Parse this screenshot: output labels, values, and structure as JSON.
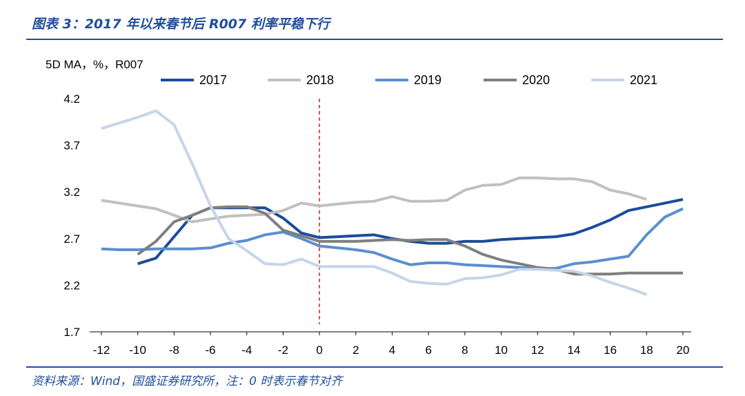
{
  "title": "图表 3：2017 年以来春节后 R007 利率平稳下行",
  "source": "资料来源：Wind，国盛证券研究所，注：0 时表示春节对齐",
  "colors": {
    "2017": "#1b4c9c",
    "2018": "#c0c0c0",
    "2019": "#5a8fd0",
    "2020": "#7f7f7f",
    "2021": "#c5d5ea",
    "marker": "#e8262a",
    "rule": "#1f4e9a"
  },
  "chart_data": {
    "type": "line",
    "ylabel": "5D MA，%，R007",
    "xlim": [
      -12,
      20
    ],
    "ylim": [
      1.7,
      4.2
    ],
    "x_ticks": [
      -12,
      -10,
      -8,
      -6,
      -4,
      -2,
      0,
      2,
      4,
      6,
      8,
      10,
      12,
      14,
      16,
      18,
      20
    ],
    "x_tick_labels": [
      "-12",
      "-10",
      "-8",
      "-6",
      "-4",
      "-2",
      "0",
      "2",
      "4",
      "6",
      "8",
      "10",
      "12",
      "14",
      "16",
      "18",
      "20"
    ],
    "y_ticks": [
      1.7,
      2.2,
      2.7,
      3.2,
      3.7,
      4.2
    ],
    "y_tick_labels": [
      "1.7",
      "2.2",
      "2.7",
      "3.2",
      "3.7",
      "4.2"
    ],
    "vline_x": 0,
    "legend_position": "top",
    "series": [
      {
        "name": "2017",
        "x": [
          -10,
          -9,
          -8,
          -7,
          -6,
          -5,
          -4,
          -3,
          -2,
          -1,
          0,
          1,
          2,
          3,
          4,
          5,
          6,
          7,
          8,
          9,
          10,
          11,
          12,
          13,
          14,
          15,
          16,
          17,
          18,
          19,
          20
        ],
        "y": [
          2.43,
          2.49,
          2.72,
          2.95,
          3.03,
          3.03,
          3.03,
          3.03,
          2.92,
          2.76,
          2.71,
          2.72,
          2.73,
          2.74,
          2.7,
          2.67,
          2.65,
          2.65,
          2.67,
          2.67,
          2.69,
          2.7,
          2.71,
          2.72,
          2.75,
          2.82,
          2.9,
          3.0,
          3.04,
          3.08,
          3.12
        ]
      },
      {
        "name": "2018",
        "x": [
          -12,
          -11,
          -10,
          -9,
          -8,
          -7,
          -6,
          -5,
          -4,
          -3,
          -2,
          -1,
          0,
          1,
          2,
          3,
          4,
          5,
          6,
          7,
          8,
          9,
          10,
          11,
          12,
          13,
          14,
          15,
          16,
          17,
          18
        ],
        "y": [
          3.11,
          3.08,
          3.05,
          3.02,
          2.95,
          2.88,
          2.91,
          2.94,
          2.95,
          2.96,
          3.0,
          3.08,
          3.05,
          3.07,
          3.09,
          3.1,
          3.15,
          3.1,
          3.1,
          3.11,
          3.22,
          3.27,
          3.28,
          3.35,
          3.35,
          3.34,
          3.34,
          3.31,
          3.22,
          3.18,
          3.12
        ]
      },
      {
        "name": "2019",
        "x": [
          -12,
          -11,
          -10,
          -9,
          -8,
          -7,
          -6,
          -5,
          -4,
          -3,
          -2,
          -1,
          0,
          1,
          2,
          3,
          4,
          5,
          6,
          7,
          8,
          9,
          10,
          11,
          12,
          13,
          14,
          15,
          16,
          17,
          18,
          19,
          20
        ],
        "y": [
          2.59,
          2.58,
          2.58,
          2.59,
          2.59,
          2.59,
          2.6,
          2.65,
          2.68,
          2.74,
          2.77,
          2.7,
          2.62,
          2.6,
          2.58,
          2.55,
          2.48,
          2.42,
          2.44,
          2.44,
          2.42,
          2.41,
          2.4,
          2.39,
          2.38,
          2.38,
          2.43,
          2.45,
          2.48,
          2.51,
          2.74,
          2.93,
          3.02
        ]
      },
      {
        "name": "2020",
        "x": [
          -10,
          -9,
          -8,
          -7,
          -6,
          -5,
          -4,
          -3,
          -2,
          -1,
          0,
          1,
          2,
          3,
          4,
          5,
          6,
          7,
          8,
          9,
          10,
          11,
          12,
          13,
          14,
          15,
          16,
          17,
          18,
          19,
          20
        ],
        "y": [
          2.53,
          2.67,
          2.88,
          2.95,
          3.03,
          3.04,
          3.04,
          2.97,
          2.79,
          2.73,
          2.67,
          2.67,
          2.67,
          2.68,
          2.69,
          2.68,
          2.69,
          2.69,
          2.62,
          2.53,
          2.47,
          2.43,
          2.39,
          2.37,
          2.32,
          2.32,
          2.32,
          2.33,
          2.33,
          2.33,
          2.33
        ]
      },
      {
        "name": "2021",
        "x": [
          -12,
          -11,
          -10,
          -9,
          -8,
          -7,
          -6,
          -5,
          -4,
          -3,
          -2,
          -1,
          0,
          1,
          2,
          3,
          4,
          5,
          6,
          7,
          8,
          9,
          10,
          11,
          12,
          13,
          14,
          15,
          16,
          17,
          18
        ],
        "y": [
          3.88,
          3.94,
          4.0,
          4.07,
          3.92,
          3.5,
          3.05,
          2.7,
          2.57,
          2.43,
          2.42,
          2.48,
          2.4,
          2.4,
          2.4,
          2.4,
          2.33,
          2.24,
          2.22,
          2.21,
          2.27,
          2.28,
          2.31,
          2.37,
          2.37,
          2.36,
          2.35,
          2.3,
          2.23,
          2.17,
          2.1
        ]
      }
    ]
  }
}
